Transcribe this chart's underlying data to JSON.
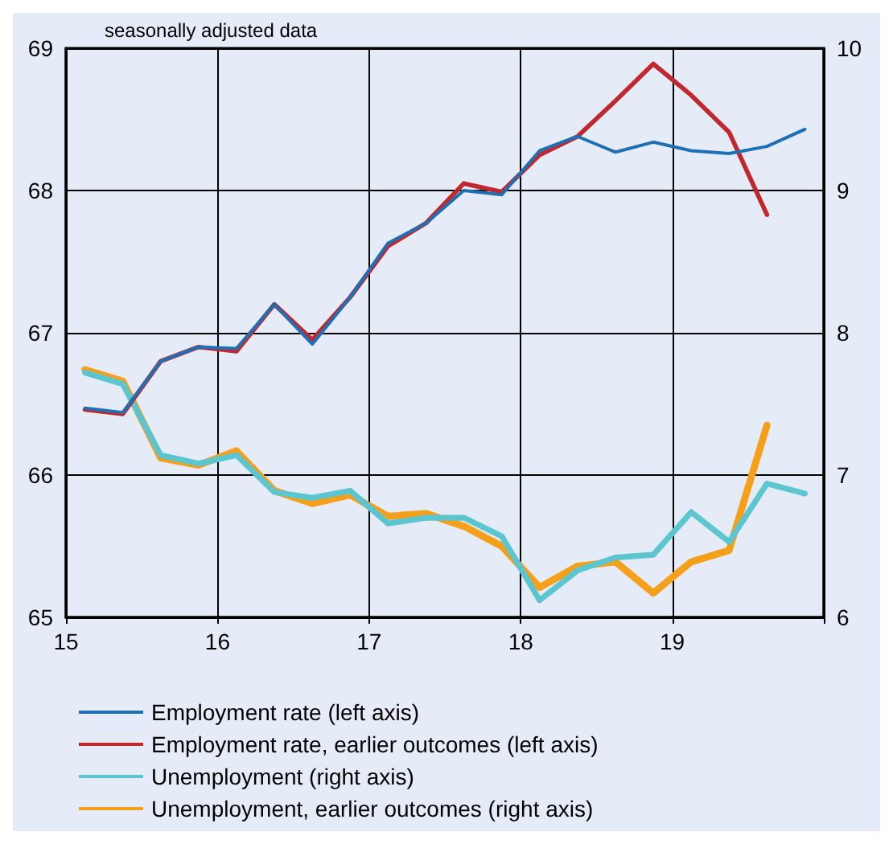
{
  "chart_data": {
    "type": "line",
    "subtitle": "seasonally adjusted data",
    "x": [
      15.125,
      15.375,
      15.625,
      15.875,
      16.125,
      16.375,
      16.625,
      16.875,
      17.125,
      17.375,
      17.625,
      17.875,
      18.125,
      18.375,
      18.625,
      18.875,
      19.125,
      19.375,
      19.625,
      19.875
    ],
    "series": [
      {
        "name": "Employment rate (left axis)",
        "color": "#1f6fb5",
        "values": [
          66.47,
          66.44,
          66.8,
          66.9,
          66.89,
          67.2,
          66.92,
          67.25,
          67.63,
          67.77,
          68.0,
          67.97,
          68.28,
          68.38,
          68.27,
          68.34,
          68.28,
          68.26,
          68.31,
          68.43
        ]
      },
      {
        "name": "Employment rate, earlier outcomes (left axis)",
        "color": "#c0282d",
        "values": [
          66.46,
          66.43,
          66.8,
          66.9,
          66.87,
          67.2,
          66.95,
          67.25,
          67.61,
          67.77,
          68.05,
          67.99,
          68.25,
          68.38,
          68.63,
          68.89,
          68.67,
          68.41,
          67.83,
          null
        ]
      },
      {
        "name": "Unemployment (right axis)",
        "color": "#5bc5d0",
        "axis": "y2",
        "values": [
          7.72,
          7.64,
          7.14,
          7.08,
          7.14,
          6.88,
          6.84,
          6.89,
          6.66,
          6.7,
          6.7,
          6.57,
          6.12,
          6.33,
          6.42,
          6.44,
          6.74,
          6.53,
          6.94,
          6.87
        ]
      },
      {
        "name": "Unemployment, earlier outcomes (right axis)",
        "color": "#f5a01a",
        "axis": "y2",
        "values": [
          7.74,
          7.66,
          7.12,
          7.07,
          7.17,
          6.89,
          6.8,
          6.86,
          6.71,
          6.73,
          6.64,
          6.5,
          6.21,
          6.36,
          6.39,
          6.17,
          6.39,
          6.47,
          7.35,
          null
        ]
      }
    ],
    "xlim": [
      15,
      20
    ],
    "xticks": [
      15,
      16,
      17,
      18,
      19
    ],
    "ylim": [
      65,
      69
    ],
    "yticks": [
      65,
      66,
      67,
      68,
      69
    ],
    "y2lim": [
      6,
      10
    ],
    "y2ticks": [
      6,
      7,
      8,
      9,
      10
    ],
    "grid": true,
    "legend": "bottom",
    "marker": "none",
    "line_style": "solid"
  }
}
